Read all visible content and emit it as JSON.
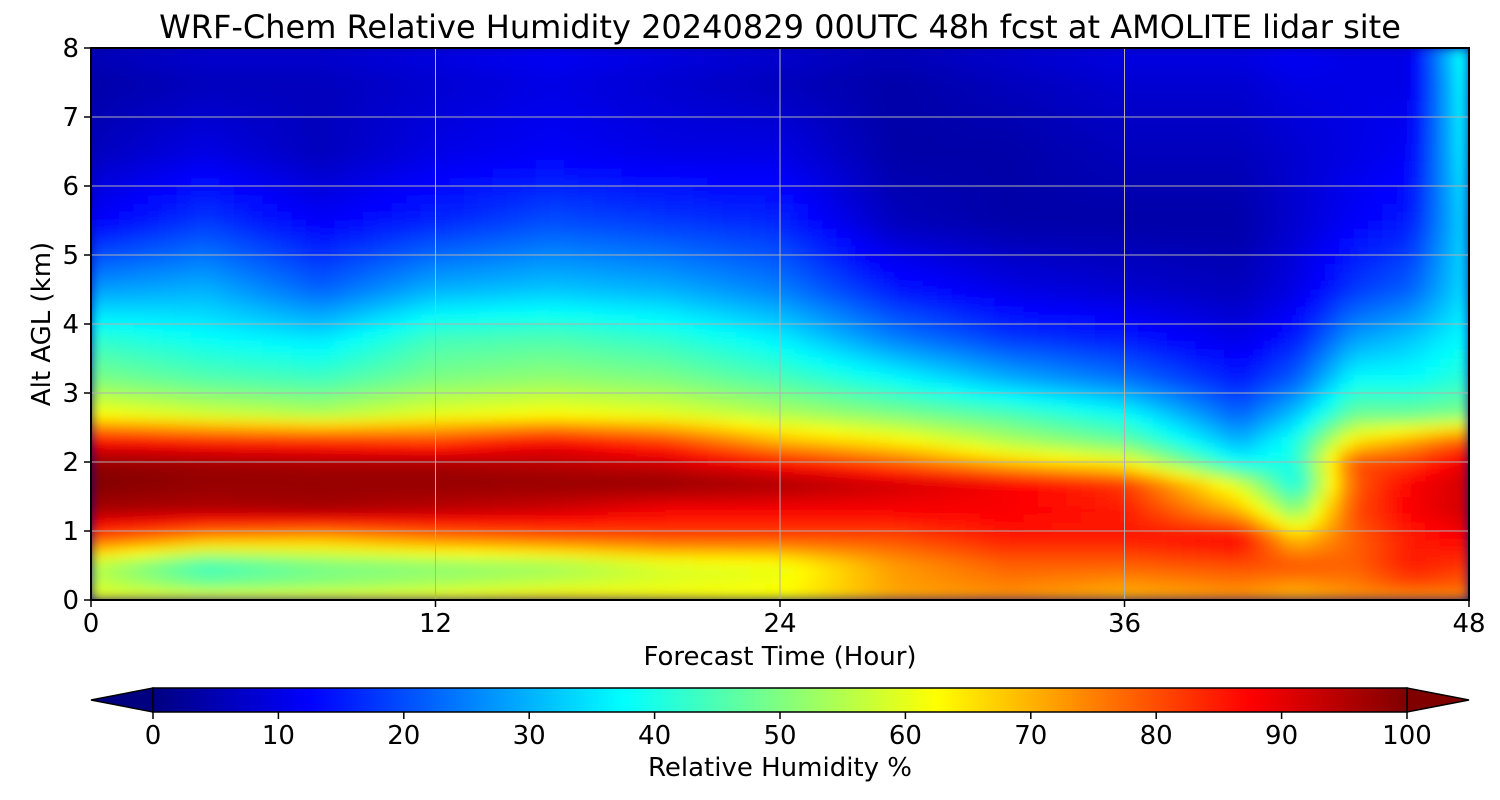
{
  "chart_data": {
    "type": "heatmap",
    "title": "WRF-Chem Relative Humidity 20240829 00UTC 48h fcst at AMOLITE lidar site",
    "xlabel": "Forecast Time (Hour)",
    "ylabel": "Alt AGL (km)",
    "xlim": [
      0,
      48
    ],
    "ylim": [
      0,
      8
    ],
    "xticks": [
      0,
      12,
      24,
      36,
      48
    ],
    "yticks": [
      0,
      1,
      2,
      3,
      4,
      5,
      6,
      7,
      8
    ],
    "grid": true,
    "colormap": "jet",
    "colorbar": {
      "label": "Relative Humidity %",
      "ticks": [
        0,
        10,
        20,
        30,
        40,
        50,
        60,
        70,
        80,
        90,
        100
      ],
      "range": [
        0,
        100
      ],
      "extend": "both",
      "orientation": "horizontal"
    },
    "x": [
      0,
      4,
      8,
      12,
      16,
      20,
      24,
      28,
      32,
      36,
      40,
      42,
      44,
      46,
      48
    ],
    "y": [
      0,
      0.2,
      0.5,
      0.9,
      1.3,
      1.7,
      2.0,
      2.3,
      2.7,
      3.2,
      3.8,
      4.5,
      5.5,
      6.5,
      7.5,
      8.0
    ],
    "values": [
      [
        62,
        65,
        65,
        65,
        68,
        65,
        62,
        70,
        72,
        70,
        72,
        70,
        72,
        70,
        72
      ],
      [
        58,
        50,
        52,
        55,
        58,
        60,
        62,
        72,
        75,
        72,
        75,
        72,
        75,
        80,
        78
      ],
      [
        55,
        42,
        48,
        50,
        52,
        58,
        60,
        72,
        78,
        78,
        80,
        80,
        78,
        85,
        82
      ],
      [
        80,
        72,
        70,
        75,
        78,
        80,
        80,
        80,
        85,
        85,
        88,
        68,
        78,
        85,
        88
      ],
      [
        96,
        95,
        96,
        94,
        92,
        88,
        88,
        88,
        88,
        85,
        70,
        50,
        80,
        88,
        92
      ],
      [
        100,
        98,
        98,
        98,
        98,
        98,
        96,
        92,
        88,
        82,
        58,
        38,
        78,
        88,
        92
      ],
      [
        98,
        97,
        96,
        96,
        94,
        92,
        86,
        78,
        68,
        62,
        38,
        40,
        80,
        82,
        90
      ],
      [
        88,
        85,
        84,
        82,
        88,
        82,
        70,
        64,
        55,
        48,
        30,
        40,
        65,
        72,
        80
      ],
      [
        62,
        58,
        55,
        60,
        62,
        60,
        55,
        50,
        45,
        38,
        22,
        32,
        48,
        48,
        50
      ],
      [
        50,
        46,
        44,
        50,
        52,
        50,
        45,
        38,
        30,
        24,
        15,
        22,
        38,
        38,
        42
      ],
      [
        42,
        38,
        35,
        44,
        45,
        42,
        36,
        25,
        18,
        15,
        10,
        15,
        28,
        32,
        38
      ],
      [
        28,
        30,
        22,
        30,
        32,
        30,
        25,
        15,
        10,
        8,
        6,
        10,
        18,
        22,
        35
      ],
      [
        12,
        18,
        12,
        16,
        20,
        18,
        16,
        6,
        4,
        4,
        4,
        8,
        12,
        15,
        35
      ],
      [
        6,
        10,
        6,
        10,
        12,
        10,
        10,
        4,
        4,
        6,
        6,
        8,
        10,
        12,
        38
      ],
      [
        4,
        6,
        6,
        8,
        10,
        8,
        6,
        4,
        6,
        8,
        8,
        10,
        10,
        10,
        40
      ],
      [
        6,
        8,
        8,
        10,
        12,
        10,
        8,
        6,
        8,
        10,
        10,
        12,
        10,
        10,
        42
      ]
    ]
  }
}
